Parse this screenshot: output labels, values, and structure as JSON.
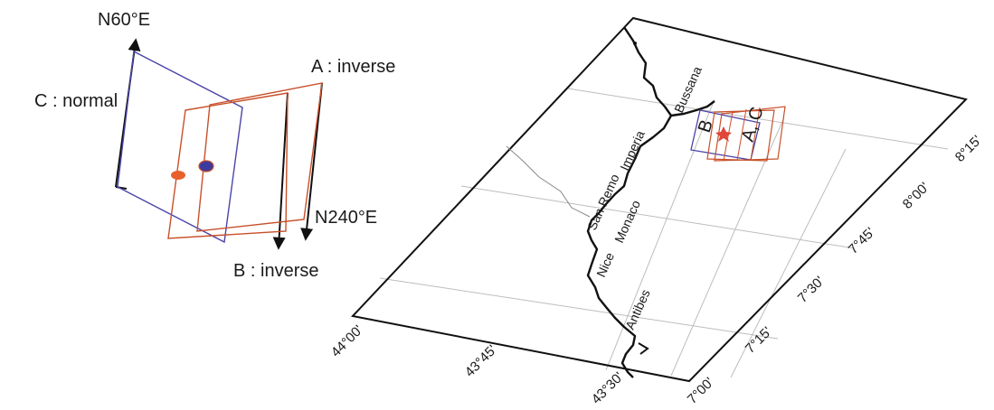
{
  "fault_diagram": {
    "labels": {
      "strike_n60": "N60°E",
      "strike_n240": "N240°E",
      "plane_a": "A : inverse",
      "plane_b": "B : inverse",
      "plane_c": "C : normal"
    },
    "colors": {
      "plane_a": "#c8502a",
      "plane_b": "#c8502a",
      "plane_c": "#4a44a8",
      "marker_orange": "#e8602c",
      "marker_blue": "#3f3a9e",
      "arrow": "#111111"
    }
  },
  "map": {
    "places": {
      "bussana": "Bussana",
      "imperia": "Imperia",
      "san_remo": "San Remo",
      "monaco": "Monaco",
      "nice": "Nice",
      "antibes": "Antibes"
    },
    "inset_labels": {
      "b": "B",
      "ac": "A, C"
    },
    "latitude_ticks": [
      "44°00'",
      "43°45'",
      "43°30'"
    ],
    "longitude_ticks": [
      "8°15'",
      "8°00'",
      "7°45'",
      "7°30'",
      "7°15'",
      "7°00'"
    ],
    "colors": {
      "frame": "#111111",
      "grid": "#bdbdbd",
      "coast": "#111111",
      "border": "#888888",
      "star": "#e0463a",
      "inset_blue": "#4a44a8",
      "inset_red": "#c8502a"
    }
  }
}
